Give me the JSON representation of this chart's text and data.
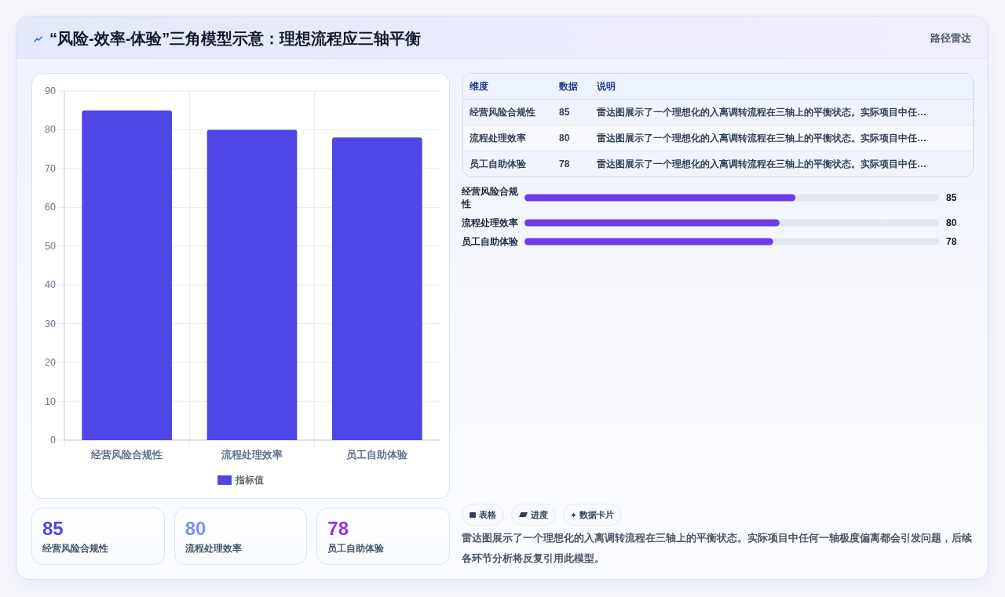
{
  "chart_data": [
    {
      "type": "other",
      "title": "“风险-效率-体验”三角模型示意：理想流程应三轴平衡",
      "subtitle": "路径雷达"
    },
    {
      "type": "bar",
      "categories": [
        "经营风险合规性",
        "流程处理效率",
        "员工自助体验"
      ],
      "series": [
        {
          "name": "指标值",
          "color": "#4f46e5",
          "values": [
            85,
            80,
            78
          ]
        }
      ],
      "ylim": [
        0,
        90
      ],
      "yticks": [
        0,
        10,
        20,
        30,
        40,
        50,
        60,
        70,
        80,
        90
      ],
      "grid": true,
      "legend": "bottom"
    },
    {
      "type": "other",
      "categories": [
        "经营风险合规性",
        "流程处理效率",
        "员工自助体验"
      ],
      "values": [
        85,
        80,
        78
      ],
      "data_labels": true,
      "annotations": [
        "维度",
        "数据",
        "说明",
        "雷达图展示了一个理想化的入离调转流程在三轴上的平衡状态。实际项目中任…",
        "雷达图展示了一个理想化的入离调转流程在三轴上的平衡状态。实际项目中任…",
        "雷达图展示了一个理想化的入离调转流程在三轴上的平衡状态。实际项目中任…"
      ]
    },
    {
      "type": "bar",
      "orientation": "horizontal",
      "categories": [
        "经营风险合规性",
        "流程处理效率",
        "员工自助体验"
      ],
      "values": [
        85,
        80,
        78
      ],
      "color": "#6d3de8",
      "xlim": [
        0,
        130
      ],
      "data_labels": true,
      "tick_labels": "y"
    },
    {
      "type": "other",
      "categories": [
        "经营风险合规性",
        "流程处理效率",
        "员工自助体验"
      ],
      "values": [
        85,
        80,
        78
      ],
      "data_labels": true
    },
    {
      "type": "other",
      "annotations": [
        "表格",
        "进度",
        "数据卡片",
        "雷达图展示了一个理想化的入离调转流程在三轴上的平衡状态。实际项目中任何一轴极度偏离都会引发问题，后续各环节分析将反复引用此模型。"
      ]
    }
  ]
}
